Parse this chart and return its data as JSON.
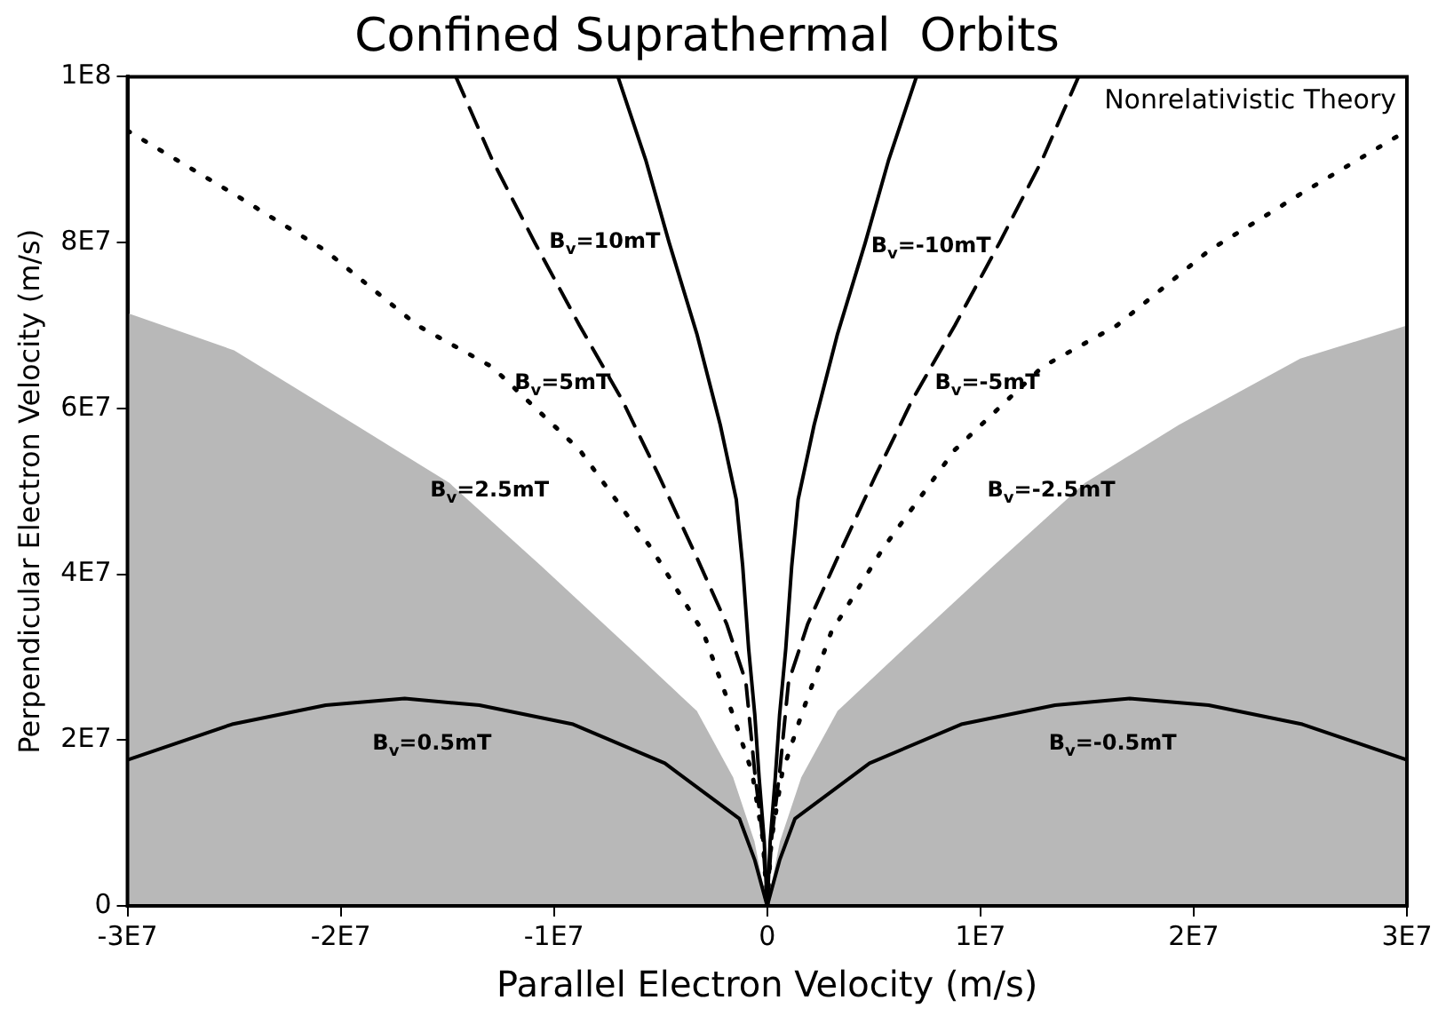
{
  "chart_data": {
    "type": "line",
    "title": "Confined Suprathermal  Orbits",
    "xlabel": "Parallel Electron Velocity (m/s)",
    "ylabel": "Perpendicular Electron Velocity (m/s)",
    "xlim": [
      -30000000.0,
      30000000.0
    ],
    "ylim": [
      0,
      100000000.0
    ],
    "xticks": [
      {
        "value": -30000000.0,
        "label": "-3E7"
      },
      {
        "value": -20000000.0,
        "label": "-2E7"
      },
      {
        "value": -10000000.0,
        "label": "-1E7"
      },
      0,
      {
        "value": 10000000.0,
        "label": "1E7"
      },
      {
        "value": 20000000.0,
        "label": "2E7"
      },
      {
        "value": 30000000.0,
        "label": "3E7"
      }
    ],
    "yticks": [
      0,
      {
        "value": 20000000.0,
        "label": "2E7"
      },
      {
        "value": 40000000.0,
        "label": "4E7"
      },
      {
        "value": 60000000.0,
        "label": "6E7"
      },
      {
        "value": 80000000.0,
        "label": "8E7"
      },
      {
        "value": 100000000.0,
        "label": "1E8"
      }
    ],
    "grid": false,
    "legend": false,
    "marker": "none",
    "series": [
      {
        "type": "area",
        "color": "#b8b8b8",
        "x": [
          -30000000.0,
          -25000000.0,
          -19300000.0,
          -14900000.0,
          -10600000.0,
          -6200000.0,
          -3300000.0,
          -1600000.0,
          -600000.0,
          0
        ],
        "values": [
          71500000.0,
          67000000.0,
          58000000.0,
          51000000.0,
          41000000.0,
          30500000.0,
          23500000.0,
          15500000.0,
          7800000.0,
          0
        ]
      },
      {
        "type": "area",
        "color": "#b8b8b8",
        "x": [
          0,
          600000.0,
          1600000.0,
          3300000.0,
          6200000.0,
          10600000.0,
          14900000.0,
          19300000.0,
          25000000.0,
          30000000.0
        ],
        "values": [
          0,
          7800000.0,
          15500000.0,
          23500000.0,
          30500000.0,
          41000000.0,
          51000000.0,
          58000000.0,
          66000000.0,
          70000000.0
        ]
      },
      {
        "name": "B$_{v}$=10mT",
        "color": "#000000",
        "line_style": "solid",
        "x": [
          -7000000.0,
          -5700000.0,
          -4600000.0,
          -3300000.0,
          -2200000.0,
          -1450000.0,
          -1150000.0,
          -870000.0,
          -580000.0,
          -380000.0,
          -140000.0,
          0
        ],
        "values": [
          100000000.0,
          90000000.0,
          80000000.0,
          69000000.0,
          58000000.0,
          49000000.0,
          41000000.0,
          31000000.0,
          23000000.0,
          15500000.0,
          7800000.0,
          0
        ]
      },
      {
        "name": "B$_{v}$=-10mT",
        "color": "#000000",
        "line_style": "solid",
        "x": [
          0,
          140000.0,
          380000.0,
          580000.0,
          870000.0,
          1150000.0,
          1450000.0,
          2200000.0,
          3300000.0,
          4600000.0,
          5700000.0,
          7000000.0
        ],
        "values": [
          0,
          7800000.0,
          15500000.0,
          23000000.0,
          31000000.0,
          41000000.0,
          49000000.0,
          58000000.0,
          69000000.0,
          80000000.0,
          90000000.0,
          100000000.0
        ]
      },
      {
        "name": "B$_{v}$=5mT",
        "color": "#000000",
        "line_style": "dashed",
        "x": [
          -14600000.0,
          -12900000.0,
          -10900000.0,
          -8800000.0,
          -6800000.0,
          -5100000.0,
          -3300000.0,
          -1900000.0,
          -1000000.0,
          -580000.0,
          -200000.0,
          0
        ],
        "values": [
          100000000.0,
          90000000.0,
          80000000.0,
          70000000.0,
          61000000.0,
          52000000.0,
          42000000.0,
          34000000.0,
          27000000.0,
          16000000.0,
          8000000.0,
          0
        ]
      },
      {
        "name": "B$_{v}$=-5mT",
        "color": "#000000",
        "line_style": "dashed",
        "x": [
          0,
          200000.0,
          580000.0,
          1000000.0,
          1900000.0,
          3300000.0,
          5100000.0,
          6800000.0,
          8800000.0,
          10900000.0,
          12900000.0,
          14600000.0
        ],
        "values": [
          0,
          8000000.0,
          16000000.0,
          27000000.0,
          34000000.0,
          42000000.0,
          52000000.0,
          61000000.0,
          70000000.0,
          80000000.0,
          90000000.0,
          100000000.0
        ]
      },
      {
        "name": "B$_{v}$=2.5mT",
        "color": "#000000",
        "line_style": "dotted",
        "x": [
          -30000000.0,
          -25100000.0,
          -20700000.0,
          -16400000.0,
          -12900000.0,
          -8800000.0,
          -5400000.0,
          -3000000.0,
          -1600000.0,
          -700000.0,
          -200000.0,
          0
        ],
        "values": [
          93500000.0,
          86000000.0,
          79000000.0,
          70000000.0,
          65000000.0,
          55000000.0,
          43000000.0,
          33000000.0,
          23000000.0,
          16000000.0,
          8000000.0,
          0
        ]
      },
      {
        "name": "B$_{v}$=-2.5mT",
        "color": "#000000",
        "line_style": "dotted",
        "x": [
          0,
          200000.0,
          700000.0,
          1600000.0,
          3000000.0,
          5400000.0,
          8800000.0,
          12900000.0,
          16400000.0,
          20700000.0,
          25100000.0,
          30000000.0
        ],
        "values": [
          0,
          8000000.0,
          16000000.0,
          23000000.0,
          33000000.0,
          43000000.0,
          55000000.0,
          65000000.0,
          70000000.0,
          79000000.0,
          86000000.0,
          93500000.0
        ]
      },
      {
        "name": "B$_{v}$=0.5mT",
        "color": "#000000",
        "line_style": "solid",
        "x": [
          -30000000.0,
          -25100000.0,
          -20700000.0,
          -17000000.0,
          -13500000.0,
          -9100000.0,
          -4800000.0,
          -1300000.0,
          -580000.0,
          0
        ],
        "values": [
          17600000.0,
          21900000.0,
          24200000.0,
          25000000.0,
          24200000.0,
          21900000.0,
          17200000.0,
          10500000.0,
          5500000.0,
          0
        ]
      },
      {
        "name": "B$_{v}$=-0.5mT",
        "color": "#000000",
        "line_style": "solid",
        "x": [
          0,
          580000.0,
          1300000.0,
          4800000.0,
          9100000.0,
          13500000.0,
          17000000.0,
          20700000.0,
          25100000.0,
          30000000.0
        ],
        "values": [
          0,
          5500000.0,
          10500000.0,
          17200000.0,
          21900000.0,
          24200000.0,
          25000000.0,
          24200000.0,
          21900000.0,
          17600000.0
        ]
      }
    ],
    "annotations": [
      "Nonrelativistic Theory"
    ]
  }
}
